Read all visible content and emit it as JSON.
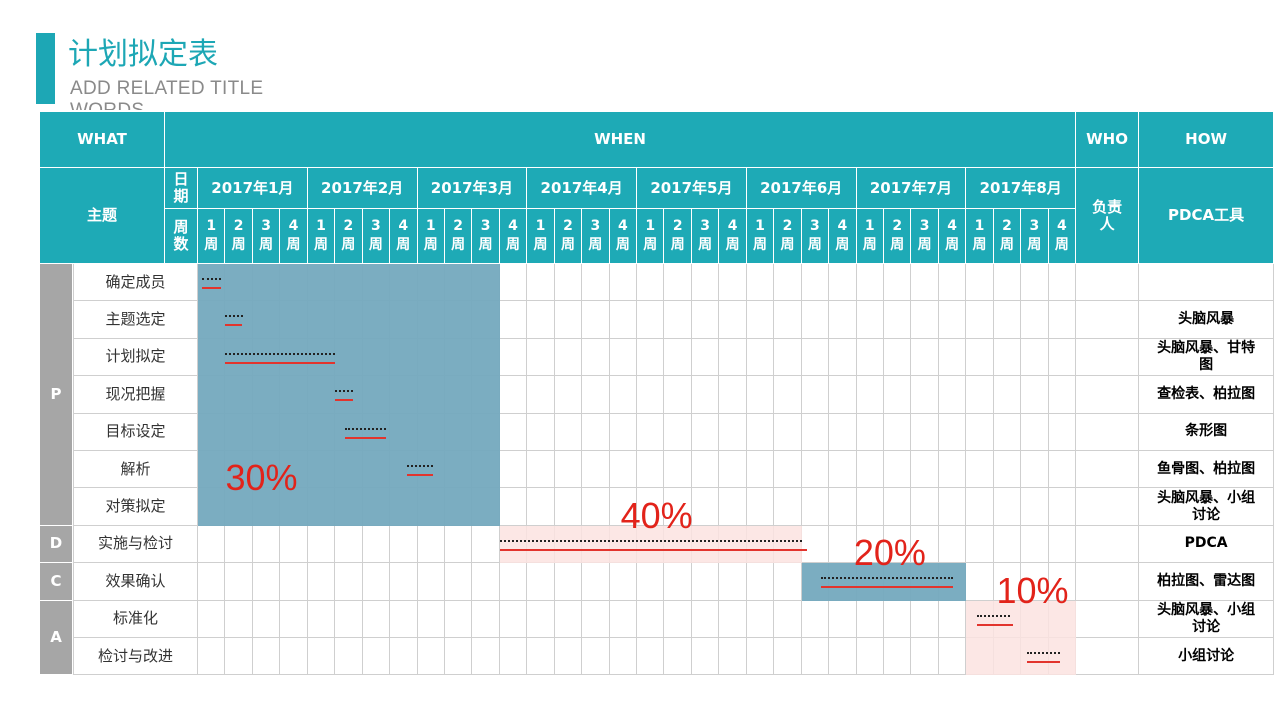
{
  "title": "计划拟定表",
  "subtitle": "ADD RELATED TITLE WORDS",
  "headers": {
    "what": "WHAT",
    "when": "WHEN",
    "who": "WHO",
    "how": "HOW",
    "theme": "主题",
    "date": "日期",
    "week": "周数",
    "owner": "负责人",
    "tool": "PDCA工具"
  },
  "months": [
    "2017年1月",
    "2017年2月",
    "2017年3月",
    "2017年4月",
    "2017年5月",
    "2017年6月",
    "2017年7月",
    "2017年8月"
  ],
  "week_labels": [
    "1周",
    "2周",
    "3周",
    "4周"
  ],
  "phases": [
    {
      "label": "P",
      "start": 0,
      "span": 7
    },
    {
      "label": "D",
      "start": 7,
      "span": 1
    },
    {
      "label": "C",
      "start": 8,
      "span": 1
    },
    {
      "label": "A",
      "start": 9,
      "span": 2
    }
  ],
  "tasks": [
    {
      "name": "确定成员",
      "tool": "",
      "plan": [
        0.15,
        0.85
      ],
      "actual": [
        0.15,
        0.85
      ]
    },
    {
      "name": "主题选定",
      "tool": "头脑风暴",
      "plan": [
        1,
        1.65
      ],
      "actual": [
        1,
        1.6
      ]
    },
    {
      "name": "计划拟定",
      "tool": "头脑风暴、甘特图",
      "plan": [
        1,
        5
      ],
      "actual": [
        1,
        5
      ]
    },
    {
      "name": "现况把握",
      "tool": "查检表、柏拉图",
      "plan": [
        5,
        5.65
      ],
      "actual": [
        5,
        5.65
      ]
    },
    {
      "name": "目标设定",
      "tool": "条形图",
      "plan": [
        5.35,
        6.85
      ],
      "actual": [
        5.35,
        6.85
      ]
    },
    {
      "name": "解析",
      "tool": "鱼骨图、柏拉图",
      "plan": [
        7.6,
        8.55
      ],
      "actual": [
        7.6,
        8.55
      ]
    },
    {
      "name": "对策拟定",
      "tool": "头脑风暴、小组讨论",
      "plan": null,
      "actual": null
    },
    {
      "name": "实施与检讨",
      "tool": "PDCA",
      "plan": [
        11,
        22
      ],
      "actual": [
        11,
        22.2
      ]
    },
    {
      "name": "效果确认",
      "tool": "柏拉图、雷达图",
      "plan": [
        22.7,
        27.5
      ],
      "actual": [
        22.7,
        27.5
      ]
    },
    {
      "name": "标准化",
      "tool": "头脑风暴、小组讨论",
      "plan": [
        28.4,
        29.6
      ],
      "actual": [
        28.4,
        29.7
      ]
    },
    {
      "name": "检讨与改进",
      "tool": "小组讨论",
      "plan": [
        30.2,
        31.4
      ],
      "actual": [
        30.2,
        31.4
      ]
    }
  ],
  "blocks": [
    {
      "start_week": 0,
      "end_week": 11,
      "start_row": 0,
      "end_row": 7,
      "color": "#74a9be"
    },
    {
      "start_week": 11,
      "end_week": 22,
      "start_row": 7,
      "end_row": 8,
      "color": "#fbe3e1"
    },
    {
      "start_week": 22,
      "end_week": 28,
      "start_row": 8,
      "end_row": 9,
      "color": "#74a9be"
    },
    {
      "start_week": 28,
      "end_week": 32,
      "start_row": 9,
      "end_row": 11,
      "color": "#fbe3e1"
    }
  ],
  "percents": [
    {
      "label": "30%",
      "week": 1,
      "row": 5.2
    },
    {
      "label": "40%",
      "week": 15.4,
      "row": 6.2
    },
    {
      "label": "20%",
      "week": 23.9,
      "row": 7.2
    },
    {
      "label": "10%",
      "week": 29.1,
      "row": 8.2
    }
  ],
  "colors": {
    "header": "#1eaab6",
    "accent": "#1da7b5",
    "phase": "#a6a6a6",
    "plan_line": "#222222",
    "actual_line": "#e2342d",
    "percent": "#e2231a"
  }
}
